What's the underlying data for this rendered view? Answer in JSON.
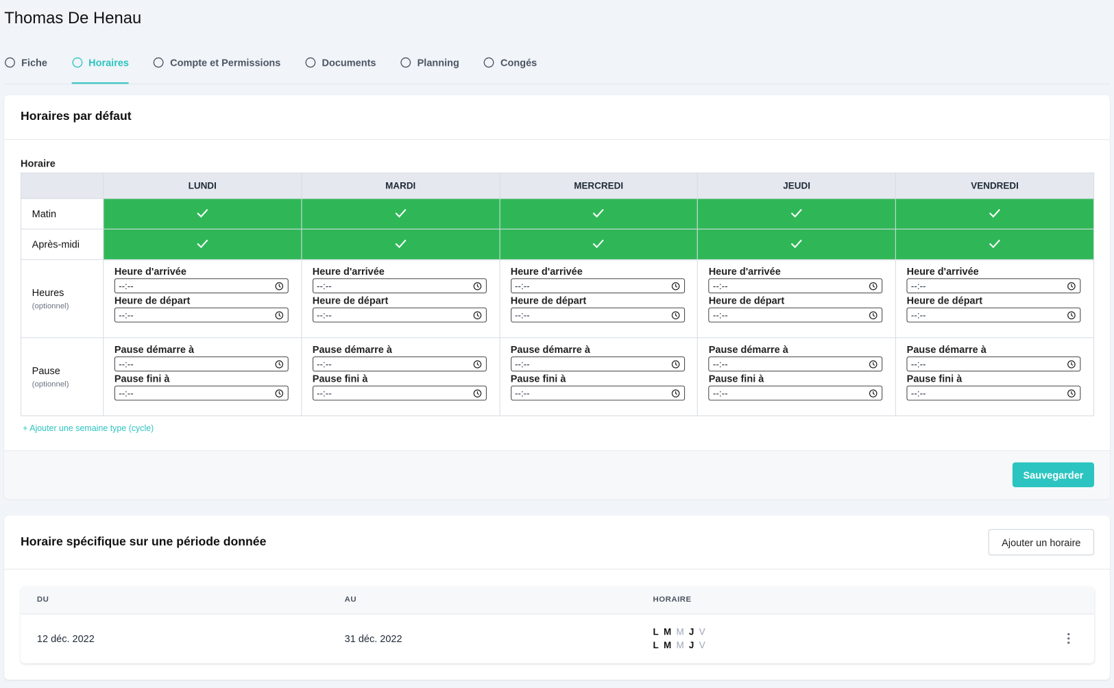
{
  "header": {
    "title": "Thomas De Henau"
  },
  "tabs": [
    "Fiche",
    "Horaires",
    "Compte et Permissions",
    "Documents",
    "Planning",
    "Congés"
  ],
  "default_schedule": {
    "title": "Horaires par défaut",
    "label": "Horaire",
    "days": [
      "LUNDI",
      "MARDI",
      "MERCREDI",
      "JEUDI",
      "VENDREDI"
    ],
    "morning": "Matin",
    "afternoon": "Après-midi",
    "hours": {
      "label": "Heures",
      "note": "(optionnel)",
      "start": "Heure d'arrivée",
      "end": "Heure de départ"
    },
    "pause": {
      "label": "Pause",
      "note": "(optionnel)",
      "start": "Pause démarre à",
      "end": "Pause fini à"
    },
    "time_placeholder": "--:--",
    "add_cycle": "+ Ajouter une semaine type (cycle)",
    "save": "Sauvegarder"
  },
  "specific_schedule": {
    "title": "Horaire spécifique sur une période donnée",
    "add_button": "Ajouter un horaire",
    "columns": [
      "DU",
      "AU",
      "HORAIRE"
    ],
    "rows": [
      {
        "from": "12 déc. 2022",
        "to": "31 déc. 2022",
        "weeks": [
          {
            "days": [
              "L",
              "M",
              "M",
              "J",
              "V"
            ],
            "active": [
              true,
              true,
              false,
              true,
              false
            ]
          },
          {
            "days": [
              "L",
              "M",
              "M",
              "J",
              "V"
            ],
            "active": [
              true,
              true,
              false,
              true,
              false
            ]
          }
        ]
      }
    ]
  }
}
